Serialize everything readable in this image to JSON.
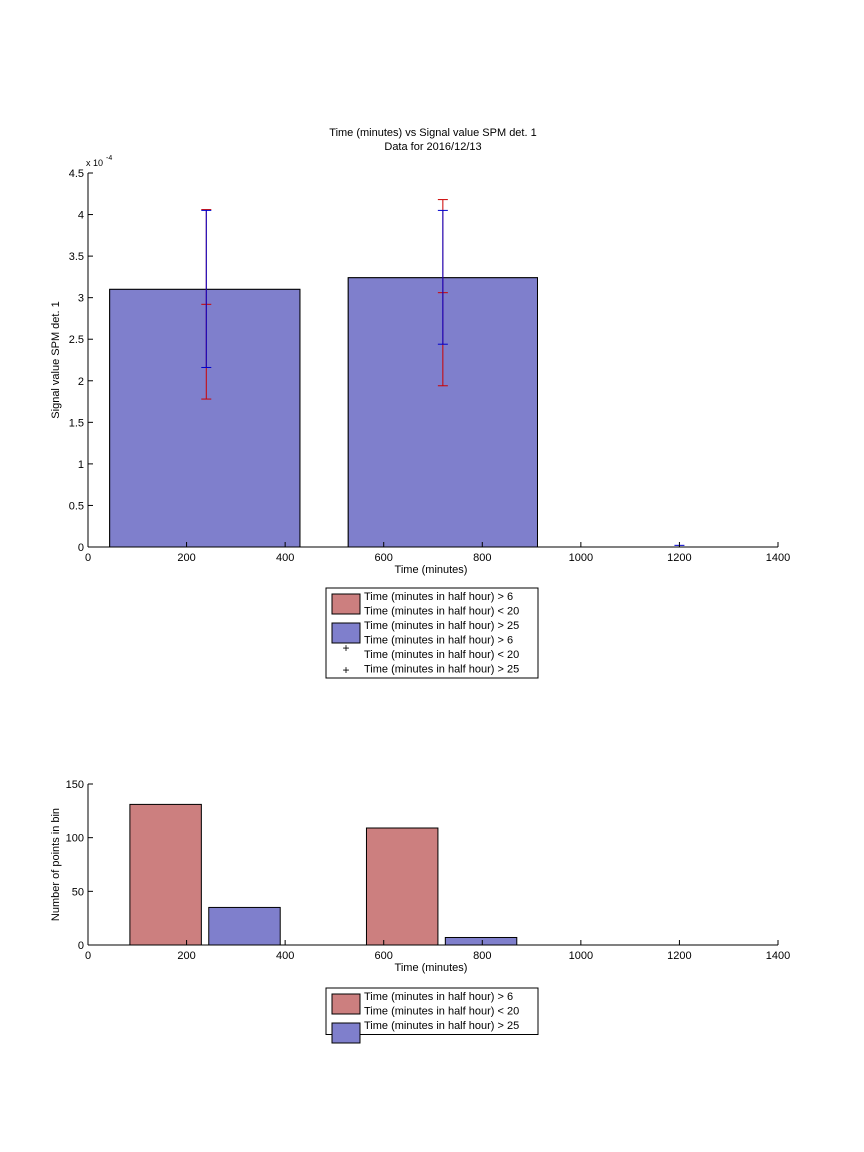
{
  "colors": {
    "bar_red": "#cc7f7f",
    "bar_blue": "#7f7fcc",
    "err_red": "#cc0000",
    "err_blue": "#0000cc",
    "axis": "#000000"
  },
  "chart_data": [
    {
      "type": "bar",
      "title": "Time (minutes) vs Signal value SPM det. 1",
      "subtitle": "Data for 2016/12/13",
      "xlabel": "Time (minutes)",
      "ylabel": "Signal value SPM det. 1",
      "y_exponent_label": "x 10",
      "y_exponent": "-4",
      "xlim": [
        0,
        1400
      ],
      "ylim": [
        0,
        4.5
      ],
      "y_scale_factor": 0.0001,
      "xticks": [
        0,
        200,
        400,
        600,
        800,
        1000,
        1200,
        1400
      ],
      "yticks": [
        0,
        0.5,
        1,
        1.5,
        2,
        2.5,
        3,
        3.5,
        4,
        4.5
      ],
      "grid": false,
      "legend_position": "below",
      "series": [
        {
          "name": "Time (minutes in half hour) > 6\nTime (minutes in half hour) < 20",
          "color": "bar_red",
          "bars": [
            {
              "x0": 44,
              "x1": 430,
              "value": 3.1
            },
            {
              "x0": 528,
              "x1": 912,
              "value": 3.24
            }
          ]
        },
        {
          "name": "Time (minutes in half hour) > 25",
          "color": "bar_blue",
          "bars": [
            {
              "x0": 44,
              "x1": 430,
              "value": 3.1
            },
            {
              "x0": 528,
              "x1": 912,
              "value": 3.24
            },
            {
              "x0": 1200,
              "x1": 1200,
              "value": 0
            }
          ]
        }
      ],
      "error_series": [
        {
          "name": "Time (minutes in half hour) > 6\nTime (minutes in half hour) < 20",
          "marker": "+",
          "color": "err_red",
          "points": [
            {
              "x": 240,
              "low": 1.78,
              "high": 4.06,
              "mid": 2.92
            },
            {
              "x": 720,
              "low": 1.94,
              "high": 4.18,
              "mid": 3.06
            }
          ]
        },
        {
          "name": "Time (minutes in half hour) > 25",
          "marker": "+",
          "color": "err_blue",
          "points": [
            {
              "x": 240,
              "low": 2.16,
              "high": 4.05
            },
            {
              "x": 720,
              "low": 2.44,
              "high": 4.05
            },
            {
              "x": 1200,
              "low": 0,
              "high": 0.02
            }
          ]
        }
      ],
      "legend": [
        {
          "kind": "patch",
          "color": "bar_red",
          "lines": [
            "Time (minutes in half hour) > 6",
            "Time (minutes in half hour) < 20"
          ]
        },
        {
          "kind": "patch",
          "color": "bar_blue",
          "lines": [
            "Time (minutes in half hour) > 25"
          ]
        },
        {
          "kind": "marker",
          "color": "err_red",
          "marker": "+",
          "lines": [
            "Time (minutes in half hour) > 6",
            "Time (minutes in half hour) < 20"
          ]
        },
        {
          "kind": "marker",
          "color": "err_blue",
          "marker": "+",
          "lines": [
            "Time (minutes in half hour) > 25"
          ]
        }
      ]
    },
    {
      "type": "bar",
      "title": "",
      "xlabel": "Time (minutes)",
      "ylabel": "Number of points in bin",
      "xlim": [
        0,
        1400
      ],
      "ylim": [
        0,
        150
      ],
      "xticks": [
        0,
        200,
        400,
        600,
        800,
        1000,
        1200,
        1400
      ],
      "yticks": [
        0,
        50,
        100,
        150
      ],
      "grid": false,
      "legend_position": "below",
      "series": [
        {
          "name": "Time (minutes in half hour) > 6\nTime (minutes in half hour) < 20",
          "color": "bar_red",
          "bars": [
            {
              "x0": 85,
              "x1": 230,
              "value": 131
            },
            {
              "x0": 565,
              "x1": 710,
              "value": 109
            }
          ]
        },
        {
          "name": "Time (minutes in half hour) > 25",
          "color": "bar_blue",
          "bars": [
            {
              "x0": 245,
              "x1": 390,
              "value": 35
            },
            {
              "x0": 725,
              "x1": 870,
              "value": 7
            }
          ]
        }
      ],
      "legend": [
        {
          "kind": "patch",
          "color": "bar_red",
          "lines": [
            "Time (minutes in half hour) > 6",
            "Time (minutes in half hour) < 20"
          ]
        },
        {
          "kind": "patch",
          "color": "bar_blue",
          "lines": [
            "Time (minutes in half hour) > 25"
          ]
        }
      ]
    }
  ]
}
